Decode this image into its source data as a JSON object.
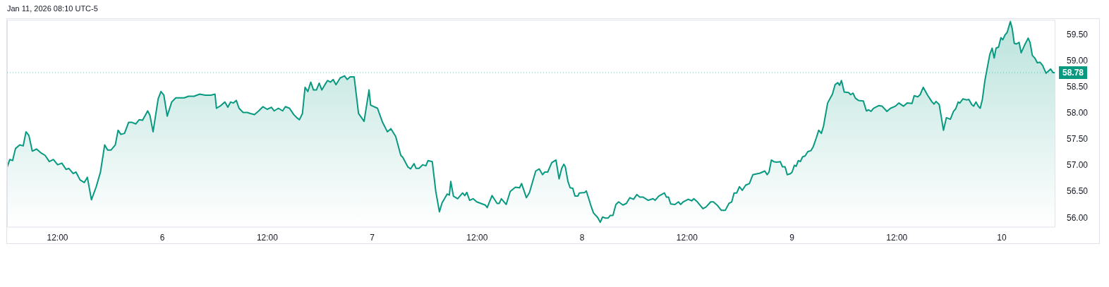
{
  "chart_data": {
    "type": "area",
    "annotations": [
      "Jan 11, 2026 08:10 UTC-5"
    ],
    "x": [
      "2026-01-05T06:14",
      "2026-01-05T06:33",
      "2026-01-05T06:52",
      "2026-01-05T07:12",
      "2026-01-05T07:41",
      "2026-01-05T08:05",
      "2026-01-05T08:24",
      "2026-01-05T08:44",
      "2026-01-05T09:07",
      "2026-01-05T09:36",
      "2026-01-05T10:05",
      "2026-01-05T10:35",
      "2026-01-05T11:04",
      "2026-01-05T11:32",
      "2026-01-05T12:01",
      "2026-01-05T12:30",
      "2026-01-05T12:59",
      "2026-01-05T13:18",
      "2026-01-05T13:48",
      "2026-01-05T14:07",
      "2026-01-05T14:35",
      "2026-01-05T15:04",
      "2026-01-05T15:25",
      "2026-01-05T15:53",
      "2026-01-05T16:26",
      "2026-01-05T16:55",
      "2026-01-05T17:24",
      "2026-01-05T17:44",
      "2026-01-05T18:07",
      "2026-01-05T18:37",
      "2026-01-05T18:56",
      "2026-01-05T19:15",
      "2026-01-05T19:40",
      "2026-01-05T20:08",
      "2026-01-05T20:32",
      "2026-01-05T20:57",
      "2026-01-05T21:20",
      "2026-01-05T21:44",
      "2026-01-05T22:19",
      "2026-01-05T22:34",
      "2026-01-05T22:56",
      "2026-01-05T23:31",
      "2026-01-05T23:50",
      "2026-01-06T00:10",
      "2026-01-06T00:33",
      "2026-01-06T01:04",
      "2026-01-06T01:32",
      "2026-01-06T02:01",
      "2026-01-06T02:30",
      "2026-01-06T02:59",
      "2026-01-06T03:37",
      "2026-01-06T04:16",
      "2026-01-06T04:54",
      "2026-01-06T05:32",
      "2026-01-06T06:01",
      "2026-01-06T06:11",
      "2026-01-06T06:40",
      "2026-01-06T07:09",
      "2026-01-06T07:29",
      "2026-01-06T07:48",
      "2026-01-06T08:07",
      "2026-01-06T08:27",
      "2026-01-06T08:46",
      "2026-01-06T09:14",
      "2026-01-06T09:43",
      "2026-01-06T10:04",
      "2026-01-06T10:32",
      "2026-01-06T11:01",
      "2026-01-06T11:30",
      "2026-01-06T11:59",
      "2026-01-06T12:28",
      "2026-01-06T12:47",
      "2026-01-06T13:16",
      "2026-01-06T13:45",
      "2026-01-06T14:04",
      "2026-01-06T14:32",
      "2026-01-06T15:01",
      "2026-01-06T15:22",
      "2026-01-06T15:40",
      "2026-01-06T16:01",
      "2026-01-06T16:19",
      "2026-01-06T16:38",
      "2026-01-06T16:58",
      "2026-01-06T17:17",
      "2026-01-06T17:37",
      "2026-01-06T17:56",
      "2026-01-06T18:14",
      "2026-01-06T18:35",
      "2026-01-06T18:53",
      "2026-01-06T19:13",
      "2026-01-06T19:32",
      "2026-01-06T19:51",
      "2026-01-06T20:20",
      "2026-01-06T20:50",
      "2026-01-06T21:08",
      "2026-01-06T21:28",
      "2026-01-06T21:56",
      "2026-01-06T22:26",
      "2026-01-06T23:04",
      "2026-01-06T23:38",
      "2026-01-06T23:49",
      "2026-01-07T00:36",
      "2026-01-07T01:11",
      "2026-01-07T01:44",
      "2026-01-07T02:08",
      "2026-01-07T02:41",
      "2026-01-07T03:16",
      "2026-01-07T03:30",
      "2026-01-07T04:04",
      "2026-01-07T04:23",
      "2026-01-07T04:47",
      "2026-01-07T05:01",
      "2026-01-07T05:21",
      "2026-01-07T05:46",
      "2026-01-07T06:08",
      "2026-01-07T06:23",
      "2026-01-07T06:52",
      "2026-01-07T07:16",
      "2026-01-07T07:41",
      "2026-01-07T07:59",
      "2026-01-07T08:34",
      "2026-01-07T08:49",
      "2026-01-07T08:59",
      "2026-01-07T09:17",
      "2026-01-07T09:46",
      "2026-01-07T10:20",
      "2026-01-07T10:35",
      "2026-01-07T10:49",
      "2026-01-07T11:08",
      "2026-01-07T11:32",
      "2026-01-07T11:57",
      "2026-01-07T12:26",
      "2026-01-07T12:55",
      "2026-01-07T13:09",
      "2026-01-07T13:42",
      "2026-01-07T13:56",
      "2026-01-07T14:17",
      "2026-01-07T14:31",
      "2026-01-07T14:46",
      "2026-01-07T15:19",
      "2026-01-07T15:47",
      "2026-01-07T16:22",
      "2026-01-07T16:51",
      "2026-01-07T17:05",
      "2026-01-07T17:38",
      "2026-01-07T17:59",
      "2026-01-07T18:42",
      "2026-01-07T19:06",
      "2026-01-07T19:29",
      "2026-01-07T19:44",
      "2026-01-07T20:04",
      "2026-01-07T20:32",
      "2026-01-07T21:01",
      "2026-01-07T21:22",
      "2026-01-07T21:40",
      "2026-01-07T21:55",
      "2026-01-07T22:05",
      "2026-01-07T22:23",
      "2026-01-07T22:38",
      "2026-01-07T22:56",
      "2026-01-07T23:11",
      "2026-01-07T23:31",
      "2026-01-07T23:41",
      "2026-01-08T00:19",
      "2026-01-08T00:29",
      "2026-01-08T01:04",
      "2026-01-08T01:18",
      "2026-01-08T01:47",
      "2026-01-08T02:05",
      "2026-01-08T02:20",
      "2026-01-08T02:40",
      "2026-01-08T02:59",
      "2026-01-08T03:13",
      "2026-01-08T03:32",
      "2026-01-08T03:52",
      "2026-01-08T04:11",
      "2026-01-08T04:40",
      "2026-01-08T05:04",
      "2026-01-08T05:28",
      "2026-01-08T05:53",
      "2026-01-08T06:16",
      "2026-01-08T06:36",
      "2026-01-08T06:59",
      "2026-01-08T07:34",
      "2026-01-08T08:07",
      "2026-01-08T08:21",
      "2026-01-08T08:46",
      "2026-01-08T09:25",
      "2026-01-08T09:39",
      "2026-01-08T09:53",
      "2026-01-08T10:08",
      "2026-01-08T10:37",
      "2026-01-08T11:01",
      "2026-01-08T11:16",
      "2026-01-08T11:34",
      "2026-01-08T12:08",
      "2026-01-08T12:33",
      "2026-01-08T12:47",
      "2026-01-08T13:11",
      "2026-01-08T13:49",
      "2026-01-08T14:10",
      "2026-01-08T14:43",
      "2026-01-08T15:01",
      "2026-01-08T15:26",
      "2026-01-08T15:55",
      "2026-01-08T16:23",
      "2026-01-08T16:48",
      "2026-01-08T17:07",
      "2026-01-08T17:23",
      "2026-01-08T17:41",
      "2026-01-08T18:00",
      "2026-01-08T18:19",
      "2026-01-08T18:43",
      "2026-01-08T19:08",
      "2026-01-08T19:32",
      "2026-01-08T20:21",
      "2026-01-08T20:54",
      "2026-01-08T21:10",
      "2026-01-08T21:23",
      "2026-01-08T21:39",
      "2026-01-08T21:55",
      "2026-01-08T22:15",
      "2026-01-08T22:40",
      "2026-01-08T22:55",
      "2026-01-08T23:13",
      "2026-01-08T23:28",
      "2026-01-08T23:50",
      "2026-01-09T00:01",
      "2026-01-09T00:17",
      "2026-01-09T00:29",
      "2026-01-09T00:44",
      "2026-01-09T00:58",
      "2026-01-09T01:13",
      "2026-01-09T01:31",
      "2026-01-09T01:49",
      "2026-01-09T02:11",
      "2026-01-09T02:27",
      "2026-01-09T02:47",
      "2026-01-09T03:04",
      "2026-01-09T03:22",
      "2026-01-09T03:37",
      "2026-01-09T04:05",
      "2026-01-09T04:38",
      "2026-01-09T04:56",
      "2026-01-09T05:14",
      "2026-01-09T05:27",
      "2026-01-09T05:40",
      "2026-01-09T05:59",
      "2026-01-09T06:29",
      "2026-01-09T06:43",
      "2026-01-09T06:59",
      "2026-01-09T07:16",
      "2026-01-09T07:37",
      "2026-01-09T08:10",
      "2026-01-09T08:31",
      "2026-01-09T08:47",
      "2026-01-09T09:03",
      "2026-01-09T09:20",
      "2026-01-09T09:55",
      "2026-01-09T10:19",
      "2026-01-09T10:52",
      "2026-01-09T11:17",
      "2026-01-09T11:50",
      "2026-01-09T12:14",
      "2026-01-09T12:46",
      "2026-01-09T13:11",
      "2026-01-09T13:44",
      "2026-01-09T13:59",
      "2026-01-09T14:24",
      "2026-01-09T14:40",
      "2026-01-09T15:01",
      "2026-01-09T15:29",
      "2026-01-09T15:59",
      "2026-01-09T16:15",
      "2026-01-09T16:29",
      "2026-01-09T16:51",
      "2026-01-09T17:20",
      "2026-01-09T17:40",
      "2026-01-09T18:07",
      "2026-01-09T18:29",
      "2026-01-09T18:44",
      "2026-01-09T19:01",
      "2026-01-09T19:12",
      "2026-01-09T19:34",
      "2026-01-09T19:58",
      "2026-01-09T20:14",
      "2026-01-09T20:34",
      "2026-01-09T20:47",
      "2026-01-09T21:03",
      "2026-01-09T21:19",
      "2026-01-09T21:32",
      "2026-01-09T21:47",
      "2026-01-09T22:05",
      "2026-01-09T22:38",
      "2026-01-09T22:54",
      "2026-01-09T23:08",
      "2026-01-09T23:21",
      "2026-01-09T23:38",
      "2026-01-09T23:54",
      "2026-01-10T00:07",
      "2026-01-10T00:22",
      "2026-01-10T00:37",
      "2026-01-10T00:59",
      "2026-01-10T01:12",
      "2026-01-10T01:26",
      "2026-01-10T01:40",
      "2026-01-10T01:59",
      "2026-01-10T02:13",
      "2026-01-10T02:37",
      "2026-01-10T03:01",
      "2026-01-10T03:14",
      "2026-01-10T03:30",
      "2026-01-10T03:47",
      "2026-01-10T04:04",
      "2026-01-10T04:23",
      "2026-01-10T04:40",
      "2026-01-10T05:04",
      "2026-01-10T05:35",
      "2026-01-10T05:53",
      "2026-01-10T06:08"
    ],
    "series": [
      {
        "color": "#089981",
        "values": [
          56.97,
          57.12,
          57.1,
          57.33,
          57.4,
          57.38,
          57.65,
          57.58,
          57.28,
          57.32,
          57.25,
          57.2,
          57.08,
          57.12,
          57.02,
          57.05,
          56.93,
          56.95,
          56.85,
          56.88,
          56.73,
          56.68,
          56.78,
          56.35,
          56.6,
          56.88,
          57.4,
          57.3,
          57.3,
          57.4,
          57.68,
          57.6,
          57.62,
          57.83,
          57.83,
          57.8,
          57.88,
          57.87,
          58.05,
          57.97,
          57.65,
          58.28,
          58.42,
          58.35,
          57.95,
          58.22,
          58.3,
          58.3,
          58.3,
          58.33,
          58.33,
          58.37,
          58.35,
          58.35,
          58.37,
          58.1,
          58.15,
          58.22,
          58.12,
          58.22,
          58.2,
          58.25,
          58.1,
          58.02,
          58.02,
          58.0,
          57.98,
          58.05,
          58.13,
          58.08,
          58.12,
          58.05,
          58.1,
          58.05,
          58.13,
          58.1,
          57.98,
          57.92,
          57.88,
          58.0,
          58.5,
          58.42,
          58.6,
          58.45,
          58.45,
          58.58,
          58.45,
          58.55,
          58.63,
          58.6,
          58.65,
          58.55,
          58.68,
          58.72,
          58.65,
          58.7,
          58.7,
          58.0,
          57.85,
          58.45,
          58.16,
          58.1,
          57.83,
          57.65,
          57.71,
          57.56,
          57.2,
          57.16,
          56.98,
          56.94,
          57.04,
          56.95,
          56.95,
          57.02,
          57.0,
          57.1,
          57.08,
          56.51,
          56.12,
          56.29,
          56.46,
          56.44,
          56.7,
          56.42,
          56.37,
          56.48,
          56.43,
          56.49,
          56.34,
          56.37,
          56.31,
          56.28,
          56.25,
          56.2,
          56.43,
          56.37,
          56.28,
          56.28,
          56.37,
          56.26,
          56.51,
          56.59,
          56.58,
          56.66,
          56.39,
          56.49,
          56.9,
          56.94,
          56.83,
          56.88,
          56.88,
          57.06,
          57.11,
          56.75,
          56.95,
          57.03,
          56.98,
          56.7,
          56.58,
          56.57,
          56.42,
          56.42,
          56.48,
          56.49,
          56.52,
          56.21,
          56.1,
          56.01,
          55.92,
          56.02,
          56.0,
          56.0,
          56.05,
          56.05,
          56.26,
          56.31,
          56.25,
          56.28,
          56.39,
          56.36,
          56.45,
          56.4,
          56.4,
          56.34,
          56.37,
          56.34,
          56.42,
          56.48,
          56.4,
          56.4,
          56.27,
          56.26,
          56.31,
          56.26,
          56.31,
          56.36,
          56.33,
          56.37,
          56.31,
          56.18,
          56.21,
          56.31,
          56.31,
          56.25,
          56.15,
          56.15,
          56.28,
          56.31,
          56.48,
          56.48,
          56.6,
          56.53,
          56.63,
          56.66,
          56.83,
          56.86,
          56.9,
          56.83,
          56.88,
          57.11,
          57.08,
          57.07,
          57.08,
          56.98,
          56.98,
          56.83,
          56.85,
          56.88,
          57.01,
          56.99,
          57.1,
          57.08,
          57.17,
          57.19,
          57.27,
          57.29,
          57.37,
          57.53,
          57.68,
          57.62,
          57.76,
          58.2,
          58.37,
          58.55,
          58.59,
          58.54,
          58.63,
          58.41,
          58.4,
          58.36,
          58.39,
          58.29,
          58.25,
          58.24,
          58.05,
          58.07,
          58.04,
          58.1,
          58.15,
          58.14,
          58.04,
          58.1,
          58.14,
          58.2,
          58.14,
          58.2,
          58.19,
          58.34,
          58.32,
          58.36,
          58.5,
          58.36,
          58.23,
          58.18,
          58.23,
          58.17,
          57.68,
          57.92,
          57.89,
          58.04,
          58.09,
          58.22,
          58.2,
          58.28,
          58.26,
          58.27,
          58.17,
          58.14,
          58.22,
          58.14,
          58.1,
          58.27,
          58.64,
          59.13,
          59.25,
          59.06,
          59.25,
          59.27,
          59.45,
          59.41,
          59.5,
          59.55,
          59.76,
          59.62,
          59.34,
          59.33,
          59.36,
          59.16,
          59.31,
          59.44,
          59.36,
          59.11,
          59.06,
          58.97,
          58.98,
          58.92,
          58.77,
          58.85,
          58.78,
          58.78
        ]
      }
    ],
    "xlim": [
      "2026-01-05T06:14",
      "2026-01-10T06:08"
    ],
    "xticks": [
      {
        "value": "2026-01-05T12:00",
        "label": "12:00"
      },
      {
        "value": "2026-01-06",
        "label": "6"
      },
      {
        "value": "2026-01-06T12:00",
        "label": "12:00"
      },
      {
        "value": "2026-01-07",
        "label": "7"
      },
      {
        "value": "2026-01-07T12:00",
        "label": "12:00"
      },
      {
        "value": "2026-01-08",
        "label": "8"
      },
      {
        "value": "2026-01-08T12:00",
        "label": "12:00"
      },
      {
        "value": "2026-01-09",
        "label": "9"
      },
      {
        "value": "2026-01-09T12:00",
        "label": "12:00"
      },
      {
        "value": "2026-01-10",
        "label": "10"
      }
    ],
    "ylim": [
      55.82,
      59.79
    ],
    "yticks": [
      {
        "value": 56,
        "label": "56.00"
      },
      {
        "value": 56.5,
        "label": "56.50"
      },
      {
        "value": 57,
        "label": "57.00"
      },
      {
        "value": 57.5,
        "label": "57.50"
      },
      {
        "value": 58,
        "label": "58.00"
      },
      {
        "value": 58.5,
        "label": "58.50"
      },
      {
        "value": 59,
        "label": "59.00"
      },
      {
        "value": 59.5,
        "label": "59.50"
      }
    ],
    "ref_lines": [
      {
        "axis": "y",
        "value": 58.78,
        "label": "58.78",
        "color": "#089981"
      }
    ],
    "grid": false,
    "legend": false
  }
}
